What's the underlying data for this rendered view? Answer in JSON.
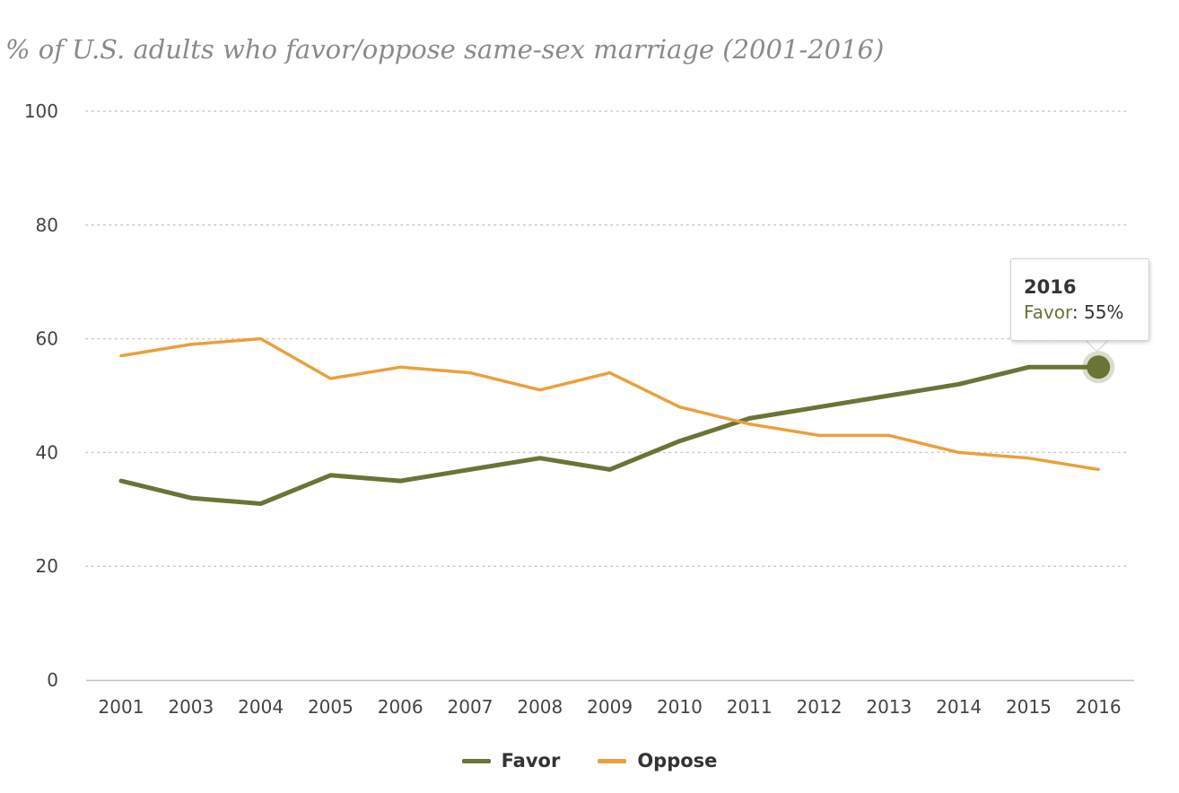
{
  "chart_data": {
    "type": "line",
    "title": "% of U.S. adults who favor/oppose same-sex marriage (2001-2016)",
    "x": [
      "2001",
      "2003",
      "2004",
      "2005",
      "2006",
      "2007",
      "2008",
      "2009",
      "2010",
      "2011",
      "2012",
      "2013",
      "2014",
      "2015",
      "2016"
    ],
    "series": [
      {
        "name": "Favor",
        "color": "#6b7436",
        "values": [
          35,
          32,
          31,
          36,
          35,
          37,
          39,
          37,
          42,
          46,
          48,
          50,
          52,
          55,
          55
        ]
      },
      {
        "name": "Oppose",
        "color": "#eaa03c",
        "values": [
          57,
          59,
          60,
          53,
          55,
          54,
          51,
          54,
          48,
          45,
          43,
          43,
          40,
          39,
          37
        ]
      }
    ],
    "yticks": [
      "0",
      "20",
      "40",
      "60",
      "80",
      "100"
    ],
    "ylim": [
      0,
      100
    ],
    "grid": true,
    "legend_position": "bottom-center"
  },
  "tooltip": {
    "year": "2016",
    "series_label": "Favor",
    "separator": ": ",
    "value_text": "55%",
    "label_color": "#6b7436"
  }
}
